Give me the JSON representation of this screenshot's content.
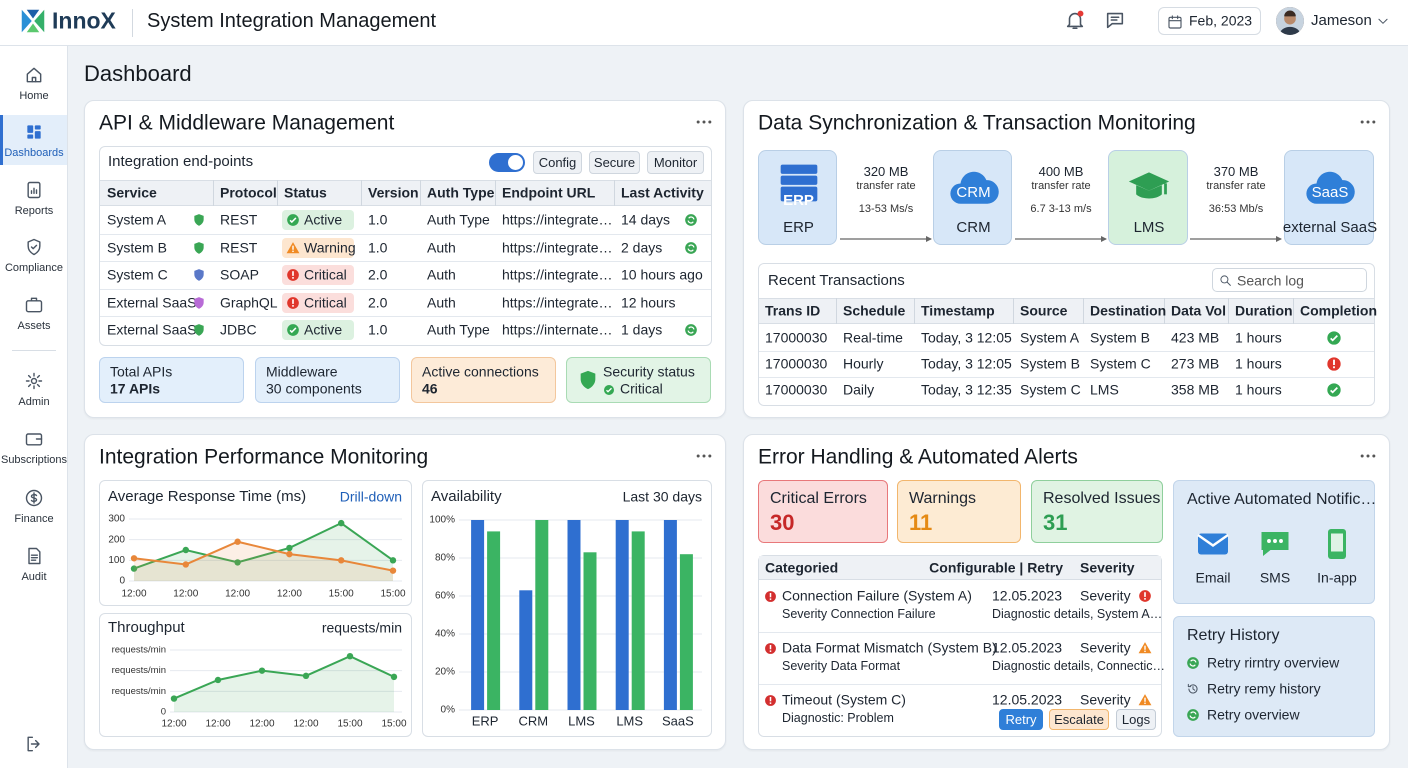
{
  "header": {
    "brand": "InnoX",
    "title": "System Integration Management",
    "date": "Feb, 2023",
    "user": "Jameson"
  },
  "sidebar": {
    "items": [
      "Home",
      "Dashboards",
      "Reports",
      "Compliance",
      "Assets",
      "Admin",
      "Subscriptions",
      "Finance",
      "Audit"
    ]
  },
  "page_title": "Dashboard",
  "api": {
    "title": "API & Middleware Management",
    "endpoints": {
      "title": "Integration end-points",
      "buttons": [
        "Config",
        "Secure",
        "Monitor"
      ],
      "columns": [
        "Service",
        "Protocol",
        "Status",
        "Version",
        "Auth Type",
        "Endpoint URL",
        "Last Activity"
      ],
      "rows": [
        [
          "System A",
          "REST",
          "Active",
          "1.0",
          "Auth Type",
          "https://integrate…",
          "14 days"
        ],
        [
          "System B",
          "REST",
          "Warning",
          "1.0",
          "Auth",
          "https://integrate…",
          "2 days"
        ],
        [
          "System C",
          "SOAP",
          "Critical",
          "2.0",
          "Auth",
          "https://integrate…",
          "10 hours ago"
        ],
        [
          "External SaaS",
          "GraphQL",
          "Critical",
          "2.0",
          "Auth",
          "https://integrate…",
          "12 hours"
        ],
        [
          "External SaaS",
          "JDBC",
          "Active",
          "1.0",
          "Auth Type",
          "https://internate…",
          "1 days"
        ]
      ]
    },
    "stats": [
      {
        "label": "Total APIs",
        "value": "17 APIs"
      },
      {
        "label": "Middleware",
        "value": "30 components"
      },
      {
        "label": "Active connections",
        "value": "46"
      },
      {
        "label": "Security status",
        "value": "Critical"
      }
    ]
  },
  "sync": {
    "title": "Data Synchronization & Transaction Monitoring",
    "nodes": [
      {
        "icon": "ERP",
        "label": "ERP"
      },
      {
        "icon": "CRM",
        "label": "CRM"
      },
      {
        "label": "LMS"
      },
      {
        "icon": "SaaS",
        "label": "external SaaS"
      }
    ],
    "links": [
      {
        "volume": "320 MB",
        "caption": "transfer rate",
        "rate": "13-53 Ms/s"
      },
      {
        "volume": "400 MB",
        "caption": "transfer rate",
        "rate": "6.7 3-13 m/s"
      },
      {
        "volume": "370 MB",
        "caption": "transfer rate",
        "rate": "36:53 Mb/s"
      }
    ],
    "transactions": {
      "title": "Recent Transactions",
      "search": "Search log",
      "columns": [
        "Trans ID",
        "Schedule",
        "Timestamp",
        "Source",
        "Destination",
        "Data Vol",
        "Duration",
        "Completion"
      ],
      "rows": [
        [
          "17000030",
          "Real-time",
          "Today, 3 12:05",
          "System A",
          "System B",
          "423 MB",
          "1 hours"
        ],
        [
          "17000030",
          "Hourly",
          "Today, 3 12:05",
          "System B",
          "System C",
          "273 MB",
          "1 hours"
        ],
        [
          "17000030",
          "Daily",
          "Today, 3 12:35",
          "System C",
          "LMS",
          "358 MB",
          "1 hours"
        ]
      ]
    }
  },
  "performance": {
    "title": "Integration Performance Monitoring",
    "response_time": {
      "type": "line",
      "title": "Average Response Time (ms)",
      "link": "Drill-down",
      "categories": [
        "12:00",
        "12:00",
        "12:00",
        "12:00",
        "15:00",
        "15:00"
      ],
      "series": [
        {
          "color": "#3aa655",
          "values": [
            60,
            150,
            90,
            160,
            280,
            100
          ]
        },
        {
          "color": "#e8873a",
          "values": [
            110,
            80,
            190,
            130,
            100,
            50
          ]
        }
      ],
      "ylim": [
        0,
        300
      ],
      "yticks": [
        0,
        100,
        200,
        300
      ],
      "grid": true
    },
    "throughput": {
      "type": "line",
      "title": "Throughput",
      "unit": "requests/min",
      "categories": [
        "12:00",
        "12:00",
        "12:00",
        "12:00",
        "15:00",
        "15:00"
      ],
      "series": [
        {
          "color": "#3aa655",
          "values": [
            65,
            155,
            200,
            175,
            270,
            170
          ]
        }
      ],
      "ylim": [
        0,
        300
      ],
      "yticks": [
        0,
        {
          "value": 100,
          "label": "requests/min"
        },
        {
          "value": 200,
          "label": "requests/min"
        },
        {
          "value": 300,
          "label": "requests/min"
        }
      ],
      "grid": true
    },
    "availability": {
      "type": "bar",
      "title": "Availability",
      "period": "Last 30 days",
      "categories": [
        "ERP",
        "CRM",
        "LMS",
        "LMS",
        "SaaS"
      ],
      "series": [
        {
          "color": "#2f6fd0",
          "values": [
            100,
            63,
            100,
            100,
            100
          ]
        },
        {
          "color": "#3bb463",
          "values": [
            94,
            100,
            83,
            94,
            82
          ]
        }
      ],
      "ylim": [
        0,
        100
      ],
      "yticks": [
        {
          "value": 0,
          "label": "0%"
        },
        {
          "value": 20,
          "label": "20%"
        },
        {
          "value": 40,
          "label": "40%"
        },
        {
          "value": 60,
          "label": "60%"
        },
        {
          "value": 80,
          "label": "80%"
        },
        {
          "value": 100,
          "label": "100%"
        }
      ],
      "grid": true
    }
  },
  "errors": {
    "title": "Error Handling & Automated Alerts",
    "cards": [
      {
        "label": "Critical Errors",
        "value": 30
      },
      {
        "label": "Warnings",
        "value": 11
      },
      {
        "label": "Resolved Issues",
        "value": 31
      }
    ],
    "table": {
      "columns": [
        "Categoried",
        "Configurable | Retry",
        "Severity"
      ],
      "rows": [
        {
          "title": "Connection Failure (System A)",
          "date": "12.05.2023",
          "severity": "Severity",
          "detail": "Severity Connection Failure",
          "note": "Diagnostic details, System A…"
        },
        {
          "title": "Data Format Mismatch (System B)",
          "date": "12.05.2023",
          "severity": "Severity",
          "detail": "Severity Data Format",
          "note": "Diagnostic details, Connectic…"
        },
        {
          "title": "Timeout (System C)",
          "date": "12.05.2023",
          "severity": "Severity",
          "detail": "Diagnostic: Problem",
          "actions": [
            "Retry",
            "Escalate",
            "Logs"
          ]
        }
      ]
    },
    "notifications": {
      "title": "Active Automated Notific…",
      "channels": [
        "Email",
        "SMS",
        "In-app"
      ]
    },
    "retry_history": {
      "title": "Retry History",
      "items": [
        "Retry rirntry overview",
        "Retry remy history",
        "Retry overview"
      ]
    }
  }
}
